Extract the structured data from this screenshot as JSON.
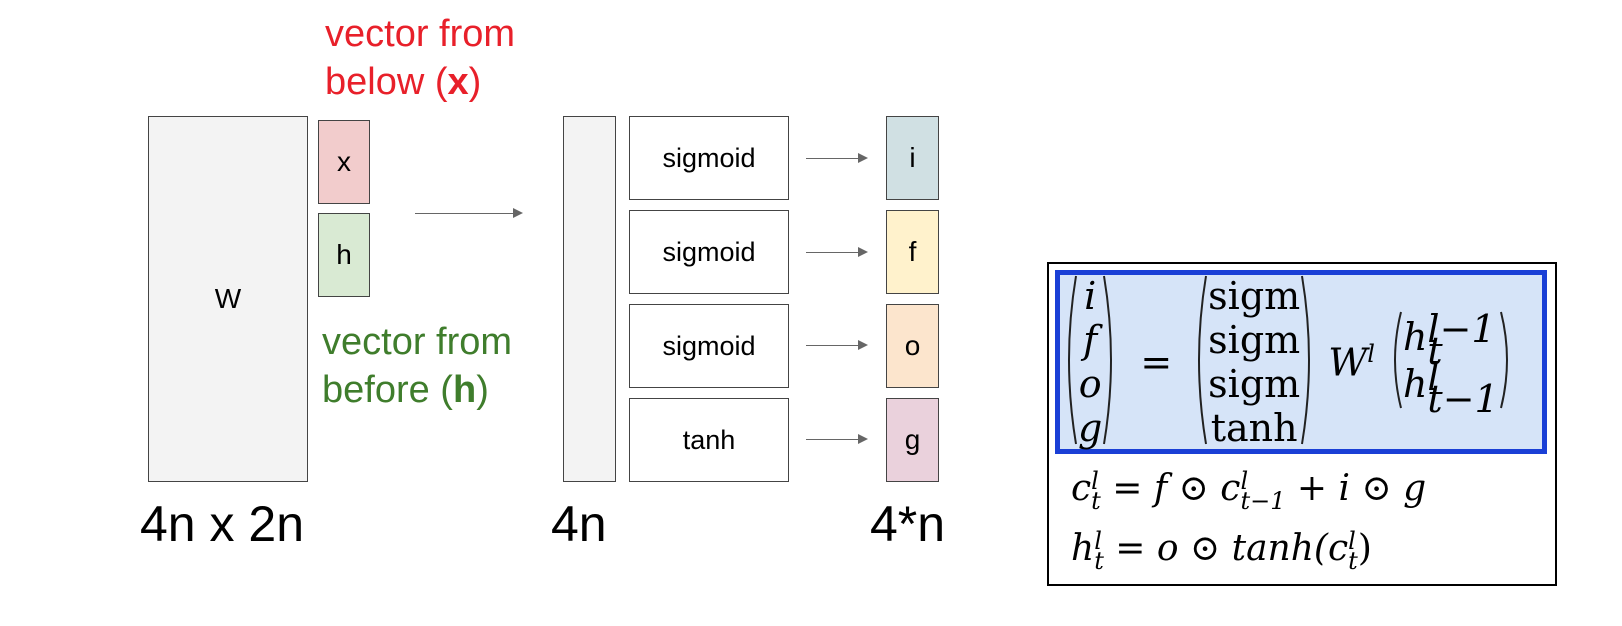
{
  "x_note": {
    "text": "vector from",
    "line2_pre": "below (",
    "line2_bold": "x",
    "line2_post": ")",
    "color": "#e8202a"
  },
  "h_note": {
    "text": "vector from",
    "line2_pre": "before (",
    "line2_bold": "h",
    "line2_post": ")",
    "color": "#3f7d2c"
  },
  "weight": {
    "label": "W",
    "dims": "4n x 2n"
  },
  "inputs": [
    {
      "label": "x",
      "color": "#f2cccc"
    },
    {
      "label": "h",
      "color": "#d9ead3"
    }
  ],
  "preact": {
    "dims": "4n"
  },
  "functions": [
    "sigmoid",
    "sigmoid",
    "sigmoid",
    "tanh"
  ],
  "gates": [
    {
      "label": "i",
      "color": "#d0e0e3"
    },
    {
      "label": "f",
      "color": "#fff2cc"
    },
    {
      "label": "o",
      "color": "#fce5cd"
    },
    {
      "label": "g",
      "color": "#ead1dc"
    }
  ],
  "gates_dims": "4*n",
  "equation": {
    "lhs": [
      "i",
      "f",
      "o",
      "g"
    ],
    "eq": "=",
    "act": [
      "sigm",
      "sigm",
      "sigm",
      "tanh"
    ],
    "W": "W",
    "W_sup": "l",
    "h_top": "h",
    "h_top_sup": "l−1",
    "h_top_sub": "t",
    "h_bot": "h",
    "h_bot_sup": "l",
    "h_bot_sub": "t−1",
    "highlight_color": "#d6e4f8",
    "border_color": "#1a3fd6",
    "cell_eq": {
      "c": "c",
      "sup": "l",
      "sub": "t",
      "rhs1": "= f ⊙ ",
      "c2": "c",
      "c2_sup": "l",
      "c2_sub": "t−1",
      "rhs2": " + i ⊙ g"
    },
    "hidden_eq": {
      "h": "h",
      "sup": "l",
      "sub": "t",
      "rhs1": "= o ⊙ tanh(",
      "c": "c",
      "c_sup": "l",
      "c_sub": "t",
      "rhs2": ")"
    }
  }
}
